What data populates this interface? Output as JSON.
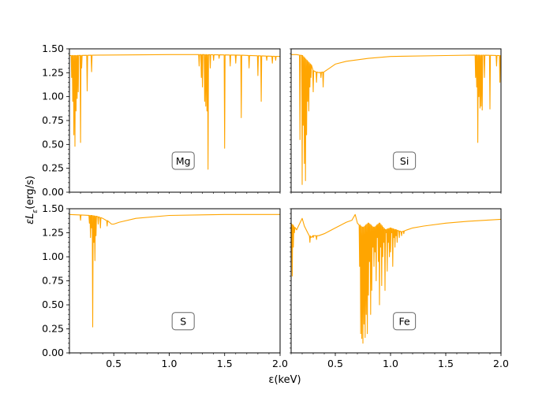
{
  "figure": {
    "xlabel": "ε(keV)",
    "ylabel_base": "εL",
    "ylabel_sub": "ε",
    "ylabel_units": "(erg/s)"
  },
  "chart_data": [
    {
      "type": "line",
      "label": "Mg",
      "color": "#FFA500",
      "xlim": [
        0.1,
        2.0
      ],
      "ylim": [
        0.0,
        1.5
      ],
      "yticks": [
        "0.00",
        "0.25",
        "0.50",
        "0.75",
        "1.00",
        "1.25",
        "1.50"
      ],
      "xticks": [],
      "baseline": [
        [
          0.1,
          1.43
        ],
        [
          0.4,
          1.435
        ],
        [
          1.0,
          1.44
        ],
        [
          1.3,
          1.44
        ],
        [
          1.6,
          1.435
        ],
        [
          2.0,
          1.42
        ]
      ],
      "lines": [
        [
          0.12,
          1.2
        ],
        [
          0.13,
          0.95
        ],
        [
          0.14,
          0.6
        ],
        [
          0.15,
          0.48
        ],
        [
          0.16,
          0.85
        ],
        [
          0.17,
          0.98
        ],
        [
          0.18,
          1.05
        ],
        [
          0.2,
          0.52
        ],
        [
          0.21,
          1.3
        ],
        [
          0.26,
          1.06
        ],
        [
          0.3,
          1.26
        ],
        [
          1.27,
          1.32
        ],
        [
          1.29,
          1.2
        ],
        [
          1.3,
          1.1
        ],
        [
          1.32,
          0.95
        ],
        [
          1.33,
          0.9
        ],
        [
          1.34,
          0.85
        ],
        [
          1.35,
          0.24
        ],
        [
          1.37,
          1.3
        ],
        [
          1.4,
          1.38
        ],
        [
          1.45,
          1.4
        ],
        [
          1.5,
          0.46
        ],
        [
          1.55,
          1.32
        ],
        [
          1.6,
          1.35
        ],
        [
          1.65,
          0.78
        ],
        [
          1.72,
          1.3
        ],
        [
          1.8,
          1.22
        ],
        [
          1.83,
          0.95
        ],
        [
          1.88,
          1.38
        ],
        [
          1.93,
          1.35
        ],
        [
          1.96,
          1.38
        ]
      ]
    },
    {
      "type": "line",
      "label": "Si",
      "color": "#FFA500",
      "xlim": [
        0.1,
        2.0
      ],
      "ylim": [
        0.0,
        1.5
      ],
      "yticks": [],
      "xticks": [],
      "baseline": [
        [
          0.1,
          1.44
        ],
        [
          0.15,
          1.44
        ],
        [
          0.2,
          1.43
        ],
        [
          0.28,
          1.33
        ],
        [
          0.3,
          1.27
        ],
        [
          0.35,
          1.25
        ],
        [
          0.4,
          1.26
        ],
        [
          0.45,
          1.3
        ],
        [
          0.5,
          1.34
        ],
        [
          0.6,
          1.37
        ],
        [
          0.8,
          1.4
        ],
        [
          1.0,
          1.42
        ],
        [
          1.5,
          1.43
        ],
        [
          1.78,
          1.435
        ],
        [
          2.0,
          1.43
        ]
      ],
      "lines": [
        [
          0.18,
          0.55
        ],
        [
          0.2,
          0.08
        ],
        [
          0.21,
          0.7
        ],
        [
          0.22,
          0.3
        ],
        [
          0.23,
          0.12
        ],
        [
          0.24,
          0.6
        ],
        [
          0.25,
          0.95
        ],
        [
          0.26,
          0.85
        ],
        [
          0.27,
          1.1
        ],
        [
          0.28,
          1.2
        ],
        [
          0.3,
          1.05
        ],
        [
          0.33,
          1.15
        ],
        [
          0.37,
          1.2
        ],
        [
          0.39,
          1.1
        ],
        [
          1.77,
          1.2
        ],
        [
          1.78,
          1.1
        ],
        [
          1.79,
          0.52
        ],
        [
          1.8,
          1.0
        ],
        [
          1.81,
          0.88
        ],
        [
          1.82,
          0.9
        ],
        [
          1.83,
          0.86
        ],
        [
          1.85,
          1.2
        ],
        [
          1.9,
          0.87
        ],
        [
          1.96,
          1.32
        ],
        [
          1.99,
          1.15
        ]
      ]
    },
    {
      "type": "line",
      "label": "S",
      "color": "#FFA500",
      "xlim": [
        0.1,
        2.0
      ],
      "ylim": [
        0.0,
        1.5
      ],
      "yticks": [
        "0.00",
        "0.25",
        "0.50",
        "0.75",
        "1.00",
        "1.25",
        "1.50"
      ],
      "xticks": [
        "0.5",
        "1.0",
        "1.5",
        "2.0"
      ],
      "baseline": [
        [
          0.1,
          1.44
        ],
        [
          0.2,
          1.435
        ],
        [
          0.3,
          1.43
        ],
        [
          0.35,
          1.42
        ],
        [
          0.4,
          1.4
        ],
        [
          0.45,
          1.37
        ],
        [
          0.48,
          1.34
        ],
        [
          0.5,
          1.34
        ],
        [
          0.55,
          1.36
        ],
        [
          0.7,
          1.4
        ],
        [
          1.0,
          1.43
        ],
        [
          1.5,
          1.44
        ],
        [
          2.0,
          1.44
        ]
      ],
      "lines": [
        [
          0.2,
          1.38
        ],
        [
          0.28,
          1.35
        ],
        [
          0.29,
          1.2
        ],
        [
          0.3,
          1.3
        ],
        [
          0.31,
          0.27
        ],
        [
          0.32,
          1.15
        ],
        [
          0.33,
          0.96
        ],
        [
          0.34,
          1.22
        ],
        [
          0.36,
          1.34
        ],
        [
          0.38,
          1.3
        ],
        [
          0.44,
          1.32
        ]
      ]
    },
    {
      "type": "line",
      "label": "Fe",
      "color": "#FFA500",
      "xlim": [
        0.1,
        2.0
      ],
      "ylim": [
        0.0,
        1.5
      ],
      "yticks": [],
      "xticks": [
        "0.5",
        "1.0",
        "1.5",
        "2.0"
      ],
      "baseline": [
        [
          0.1,
          1.35
        ],
        [
          0.12,
          1.32
        ],
        [
          0.15,
          1.28
        ],
        [
          0.2,
          1.4
        ],
        [
          0.22,
          1.32
        ],
        [
          0.25,
          1.25
        ],
        [
          0.28,
          1.2
        ],
        [
          0.3,
          1.22
        ],
        [
          0.35,
          1.22
        ],
        [
          0.4,
          1.24
        ],
        [
          0.5,
          1.3
        ],
        [
          0.6,
          1.36
        ],
        [
          0.65,
          1.38
        ],
        [
          0.68,
          1.44
        ],
        [
          0.7,
          1.35
        ],
        [
          0.75,
          1.3
        ],
        [
          0.8,
          1.35
        ],
        [
          0.85,
          1.3
        ],
        [
          0.9,
          1.35
        ],
        [
          0.95,
          1.28
        ],
        [
          1.0,
          1.3
        ],
        [
          1.05,
          1.28
        ],
        [
          1.1,
          1.26
        ],
        [
          1.15,
          1.28
        ],
        [
          1.2,
          1.3
        ],
        [
          1.3,
          1.32
        ],
        [
          1.5,
          1.35
        ],
        [
          1.7,
          1.37
        ],
        [
          2.0,
          1.39
        ]
      ],
      "lines": [
        [
          0.11,
          0.8
        ],
        [
          0.12,
          1.1
        ],
        [
          0.13,
          1.25
        ],
        [
          0.27,
          1.15
        ],
        [
          0.3,
          1.2
        ],
        [
          0.33,
          1.18
        ],
        [
          0.72,
          0.9
        ],
        [
          0.73,
          0.2
        ],
        [
          0.74,
          0.15
        ],
        [
          0.75,
          0.1
        ],
        [
          0.76,
          0.3
        ],
        [
          0.77,
          0.16
        ],
        [
          0.78,
          0.4
        ],
        [
          0.79,
          0.2
        ],
        [
          0.8,
          0.6
        ],
        [
          0.81,
          0.95
        ],
        [
          0.82,
          0.4
        ],
        [
          0.83,
          0.65
        ],
        [
          0.84,
          1.1
        ],
        [
          0.85,
          0.9
        ],
        [
          0.86,
          1.05
        ],
        [
          0.87,
          0.75
        ],
        [
          0.88,
          1.2
        ],
        [
          0.89,
          0.95
        ],
        [
          0.9,
          0.5
        ],
        [
          0.91,
          1.1
        ],
        [
          0.92,
          0.7
        ],
        [
          0.93,
          1.0
        ],
        [
          0.94,
          1.15
        ],
        [
          0.95,
          0.65
        ],
        [
          0.96,
          1.25
        ],
        [
          0.97,
          0.85
        ],
        [
          0.98,
          1.15
        ],
        [
          0.99,
          1.0
        ],
        [
          1.0,
          1.05
        ],
        [
          1.01,
          1.25
        ],
        [
          1.02,
          0.9
        ],
        [
          1.03,
          1.2
        ],
        [
          1.04,
          1.1
        ],
        [
          1.05,
          1.22
        ],
        [
          1.06,
          1.15
        ],
        [
          1.08,
          1.2
        ],
        [
          1.1,
          1.22
        ],
        [
          1.12,
          1.24
        ]
      ]
    }
  ]
}
